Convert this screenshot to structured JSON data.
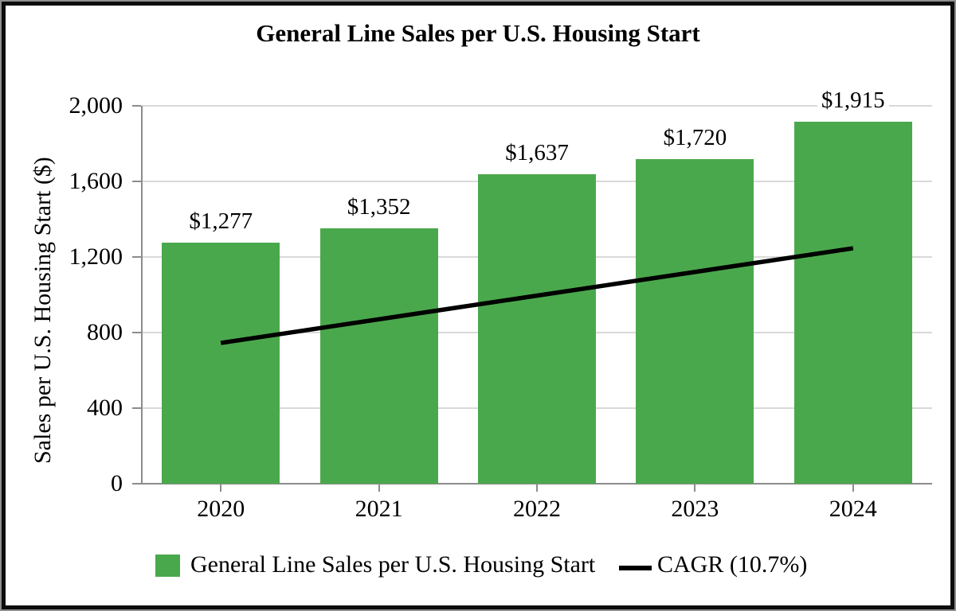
{
  "title": "General Line Sales per U.S. Housing Start",
  "y_axis": {
    "title": "Sales per U.S. Housing Start ($)",
    "tick_labels": [
      "0",
      "400",
      "800",
      "1,200",
      "1,600",
      "2,000"
    ],
    "tick_values": [
      0,
      400,
      800,
      1200,
      1600,
      2000
    ]
  },
  "x_axis": {
    "tick_labels": [
      "2020",
      "2021",
      "2022",
      "2023",
      "2024"
    ]
  },
  "chart_data": {
    "type": "bar",
    "title": "General Line Sales per U.S. Housing Start",
    "categories": [
      "2020",
      "2021",
      "2022",
      "2023",
      "2024"
    ],
    "series": [
      {
        "name": "General Line Sales per U.S. Housing Start",
        "type": "bar",
        "color": "#4aa84c",
        "values": [
          1277,
          1352,
          1637,
          1720,
          1915
        ],
        "value_labels": [
          "$1,277",
          "$1,352",
          "$1,637",
          "$1,720",
          "$1,915"
        ]
      },
      {
        "name": "CAGR (10.7%)",
        "type": "line",
        "color": "#000000",
        "cagr_percent": 10.7,
        "drawn_endpoints": {
          "categories": [
            "2020",
            "2024"
          ],
          "values": [
            745,
            1246
          ]
        }
      }
    ],
    "xlabel": "",
    "ylabel": "Sales per U.S. Housing Start ($)",
    "ylim": [
      0,
      2000
    ],
    "ytick_interval": 400,
    "grid": true,
    "legend_position": "bottom"
  },
  "legend": {
    "items": [
      {
        "label": "General Line Sales per U.S. Housing Start",
        "swatch": "bar-green"
      },
      {
        "label": "CAGR (10.7%)",
        "swatch": "line-black"
      }
    ]
  },
  "colors": {
    "bar_green": "#4aa84c",
    "axis_gray": "#8c8c8c",
    "gridline_gray": "#d9d9d9",
    "trend_line_black": "#000000",
    "text_black": "#000000",
    "background": "#ffffff"
  }
}
